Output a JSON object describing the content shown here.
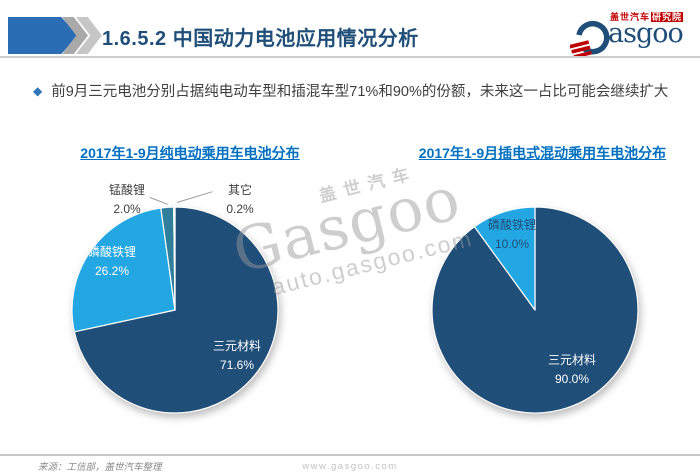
{
  "header": {
    "title": "1.6.5.2 中国动力电池应用情况分析",
    "logo": {
      "cn_brand": "盖世汽车",
      "cn_institute": "研究院",
      "latin_tail": "asgoo"
    }
  },
  "bullet": {
    "text": "前9月三元电池分别占据纯电动车型和插混车型71%和90%的份额，未来这一占比可能会继续扩大"
  },
  "watermark": {
    "cn": "盖世汽车",
    "latin": "Gasgoo",
    "domain": "auto.gasgoo.com"
  },
  "footer": {
    "source": "来源：工信部，盖世汽车整理",
    "site": "www.gasgoo.com"
  },
  "colors": {
    "ternary_navy": "#1F4E79",
    "lfp_light_blue": "#22A7E3",
    "lmo_teal": "#2F7E9B",
    "other_dark": "#17375E",
    "accent_blue": "#2A6DB5",
    "chart_title_blue": "#0070C0"
  },
  "chart_data": [
    {
      "type": "pie",
      "title": "2017年1-9月纯电动乘用车电池分布",
      "labels": [
        "三元材料",
        "磷酸铁锂",
        "锰酸锂",
        "其它"
      ],
      "values": [
        71.6,
        26.2,
        2.0,
        0.2
      ],
      "value_labels": [
        "71.6%",
        "26.2%",
        "2.0%",
        "0.2%"
      ],
      "colors": [
        "#1F4E79",
        "#22A7E3",
        "#2F7E9B",
        "#17375E"
      ],
      "start_angle": "12-oclock",
      "direction": "clockwise",
      "legend": "none"
    },
    {
      "type": "pie",
      "title": "2017年1-9月插电式混动乘用车电池分布",
      "labels": [
        "三元材料",
        "磷酸铁锂"
      ],
      "values": [
        90.0,
        10.0
      ],
      "value_labels": [
        "90.0%",
        "10.0%"
      ],
      "colors": [
        "#1F4E79",
        "#22A7E3"
      ],
      "start_angle": "12-oclock",
      "direction": "clockwise",
      "legend": "none"
    }
  ]
}
